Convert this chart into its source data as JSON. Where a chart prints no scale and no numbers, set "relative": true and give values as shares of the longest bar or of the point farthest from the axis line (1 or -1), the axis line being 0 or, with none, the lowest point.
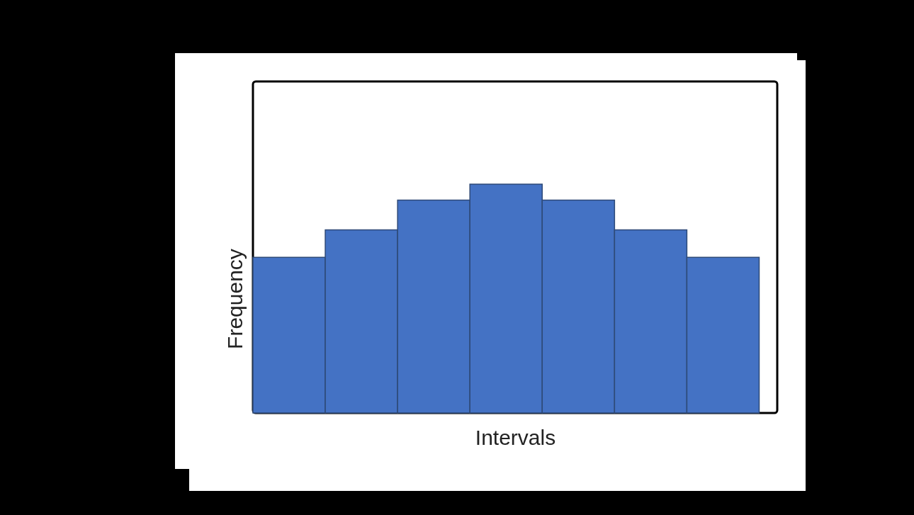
{
  "chart_data": {
    "type": "bar",
    "relative": true,
    "xlabel": "Intervals",
    "ylabel": "Frequency",
    "color": "#4472c4",
    "categories": [
      null,
      null,
      null,
      null,
      null,
      null,
      null
    ],
    "values": [
      0.68,
      0.8,
      0.93,
      1,
      0.93,
      0.8,
      0.68
    ],
    "grid": false,
    "legend": false
  }
}
